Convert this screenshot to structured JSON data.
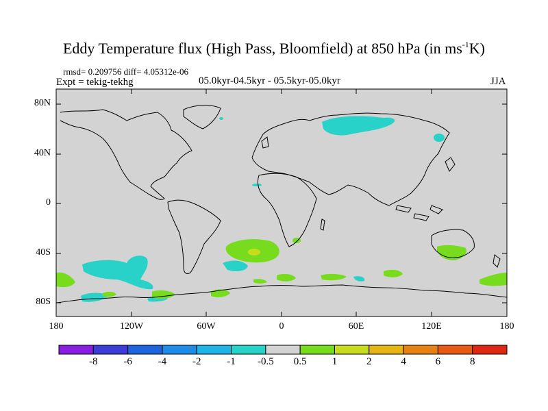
{
  "title": {
    "main": "Eddy Temperature flux (High Pass, Bloomfield) at 850 hPa (in ms",
    "sup": "-1",
    "unit_end": "K)"
  },
  "stats": "rmsd= 0.209756 diff= 4.05312e-06",
  "expt": "Expt = tekig-tekhg",
  "period": "05.0kyr-04.5kyr - 05.5kyr-05.0kyr",
  "season": "JJA",
  "lat_labels": [
    "80N",
    "40N",
    "0",
    "40S",
    "80S"
  ],
  "lon_labels": [
    "180",
    "120W",
    "60W",
    "0",
    "60E",
    "120E",
    "180"
  ],
  "colorbar": {
    "labels": [
      "-8",
      "-6",
      "-4",
      "-2",
      "-1",
      "-0.5",
      "0.5",
      "1",
      "2",
      "4",
      "6",
      "8"
    ],
    "colors": [
      "#8a1ee0",
      "#3c3cd6",
      "#1e64dc",
      "#1e8ce6",
      "#1eb4e6",
      "#28d2c8",
      "#d3d3d3",
      "#78dc1e",
      "#c8dc1e",
      "#e6b414",
      "#e68214",
      "#e65a14",
      "#dc2814"
    ]
  },
  "map": {
    "background": "#d3d3d3",
    "coast_color": "#000000",
    "cyan_region_color": "#28d2c8",
    "green_region_color": "#78dc1e",
    "yellow_region_color": "#c8dc1e"
  }
}
